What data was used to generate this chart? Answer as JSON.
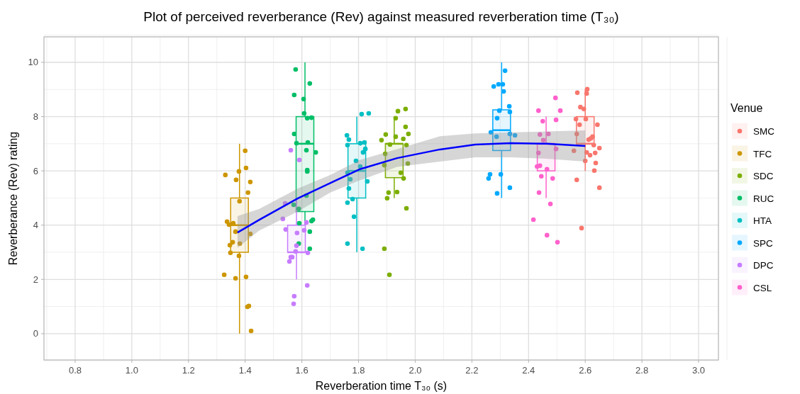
{
  "chart_data": {
    "type": "box",
    "title": "Plot of perceived reverberance (Rev) against measured reverberation time (T₃₀)",
    "xlabel": "Reverberation time T₃₀ (s)",
    "ylabel": "Reverberance (Rev) rating",
    "legend_title": "Venue",
    "legend": "right",
    "grid": true,
    "marker": "circle",
    "xlim": [
      0.69,
      3.07
    ],
    "ylim": [
      -0.97,
      10.94
    ],
    "xticks": [
      {
        "value": 0.8,
        "label": "0.8"
      },
      {
        "value": 1,
        "label": "1.0"
      },
      {
        "value": 1.2,
        "label": "1.2"
      },
      {
        "value": 1.4,
        "label": "1.4"
      },
      {
        "value": 1.6,
        "label": "1.6"
      },
      {
        "value": 1.8,
        "label": "1.8"
      },
      {
        "value": 2,
        "label": "2.0"
      },
      {
        "value": 2.2,
        "label": "2.2"
      },
      {
        "value": 2.4,
        "label": "2.4"
      },
      {
        "value": 2.6,
        "label": "2.6"
      },
      {
        "value": 2.8,
        "label": "2.8"
      },
      {
        "value": 3,
        "label": "3.0"
      }
    ],
    "yticks": [
      0,
      2,
      4,
      6,
      8,
      10
    ],
    "series": [
      {
        "color": "#f8766d",
        "x": [
          2.6
        ],
        "boxes": [
          {
            "low": 6,
            "q1": 7,
            "median": 7,
            "q3": 8,
            "high": 9
          }
        ]
      },
      {
        "color": "#cd9600",
        "x": [
          1.38
        ],
        "boxes": [
          {
            "low": 0,
            "q1": 3,
            "median": 4,
            "q3": 5,
            "high": 7
          }
        ]
      },
      {
        "color": "#7cae00",
        "x": [
          1.926
        ],
        "boxes": [
          {
            "low": 5,
            "q1": 5.75,
            "median": 7,
            "q3": 7,
            "high": 8
          }
        ]
      },
      {
        "color": "#00be67",
        "x": [
          1.611
        ],
        "boxes": [
          {
            "low": 4,
            "q1": 4.5,
            "median": 7,
            "q3": 8,
            "high": 10
          }
        ]
      },
      {
        "color": "#00bfc4",
        "x": [
          1.794
        ],
        "boxes": [
          {
            "low": 3,
            "q1": 5,
            "median": 6,
            "q3": 7,
            "high": 8
          }
        ]
      },
      {
        "color": "#00a9ff",
        "x": [
          2.305
        ],
        "boxes": [
          {
            "low": 5,
            "q1": 6.75,
            "median": 7.5,
            "q3": 8.25,
            "high": 10
          }
        ]
      },
      {
        "color": "#c77cff",
        "x": [
          1.581
        ],
        "boxes": [
          {
            "low": 2,
            "q1": 3,
            "median": 3,
            "q3": 4,
            "high": 5
          }
        ]
      },
      {
        "color": "#ff61cc",
        "x": [
          2.462
        ],
        "boxes": [
          {
            "low": 5,
            "q1": 6,
            "median": 7,
            "q3": 7,
            "high": 8
          }
        ]
      },
      {
        "name": "SMC",
        "type": "scatter",
        "color": "#f8766d",
        "x": [
          2.607,
          2.605,
          2.572,
          2.583,
          2.595,
          2.567,
          2.602,
          2.58,
          2.643,
          2.57,
          2.626,
          2.612,
          2.62,
          2.63,
          2.65,
          2.56,
          2.605,
          2.617,
          2.635,
          2.6,
          2.637,
          2.632,
          2.57,
          2.65,
          2.587
        ],
        "values": [
          9.01,
          8.85,
          8.88,
          8.35,
          8.28,
          7.91,
          7.91,
          7.7,
          7.7,
          7.36,
          7.26,
          7.15,
          7.2,
          6.95,
          6.84,
          6.74,
          6.68,
          6.58,
          6.66,
          6.37,
          6.29,
          6.01,
          5.67,
          5.38,
          3.89
        ]
      },
      {
        "name": "TFC",
        "type": "scatter",
        "color": "#cd9600",
        "x": [
          1.4,
          1.378,
          1.33,
          1.403,
          1.368,
          1.418,
          1.41,
          1.38,
          1.336,
          1.358,
          1.343,
          1.366,
          1.418,
          1.381,
          1.356,
          1.346,
          1.348,
          1.378,
          1.326,
          1.366,
          1.403,
          1.413,
          1.408,
          1.421
        ],
        "values": [
          6.74,
          5.98,
          5.85,
          6.11,
          5.67,
          5.59,
          5.2,
          4.88,
          4.13,
          4.07,
          4.02,
          3.76,
          3.68,
          3.32,
          3.37,
          3.26,
          2.98,
          2.87,
          2.17,
          2.04,
          2.09,
          1.02,
          0.99,
          0.1
        ]
      },
      {
        "name": "SDC",
        "type": "scatter",
        "color": "#7cae00",
        "x": [
          1.939,
          1.966,
          1.931,
          1.966,
          1.976,
          1.896,
          1.931,
          1.958,
          1.881,
          1.911,
          1.969,
          1.894,
          1.891,
          1.974,
          1.949,
          1.959,
          1.906,
          1.936,
          1.901,
          1.969,
          1.891,
          1.909
        ],
        "values": [
          8.2,
          8.28,
          7.94,
          7.62,
          7.36,
          7.34,
          7.26,
          7.18,
          7.13,
          6.97,
          6.95,
          6.63,
          6.21,
          6.27,
          5.93,
          5.72,
          5.2,
          5.22,
          4.99,
          4.62,
          3.13,
          2.17
        ]
      },
      {
        "name": "RUC",
        "type": "scatter",
        "color": "#00be67",
        "x": [
          1.578,
          1.628,
          1.573,
          1.606,
          1.608,
          1.619,
          1.634,
          1.573,
          1.581,
          1.621,
          1.616,
          1.649,
          1.619,
          1.619,
          1.616,
          1.571,
          1.589,
          1.634,
          1.639,
          1.591,
          1.628,
          1.589,
          1.628
        ],
        "values": [
          9.74,
          9.22,
          8.8,
          8.65,
          8.12,
          7.94,
          7.96,
          7.36,
          7.02,
          7.05,
          6.76,
          6.68,
          6.03,
          5.98,
          5.09,
          4.75,
          4.6,
          4.15,
          4.2,
          4.07,
          3.76,
          3.32,
          3.13
        ]
      },
      {
        "name": "HTA",
        "type": "scatter",
        "color": "#00bfc4",
        "x": [
          1.811,
          1.836,
          1.759,
          1.766,
          1.761,
          1.806,
          1.821,
          1.824,
          1.816,
          1.791,
          1.806,
          1.761,
          1.771,
          1.831,
          1.766,
          1.779,
          1.761,
          1.784,
          1.761,
          1.814
        ],
        "values": [
          8.09,
          8.12,
          7.31,
          7.15,
          6.95,
          7.02,
          7.05,
          6.81,
          6.68,
          6.37,
          6.16,
          5.93,
          5.69,
          5.61,
          5.35,
          4.96,
          4.83,
          4.31,
          3.32,
          3.13
        ]
      },
      {
        "name": "SPC",
        "type": "scatter",
        "color": "#00a9ff",
        "x": [
          2.317,
          2.277,
          2.294,
          2.309,
          2.312,
          2.332,
          2.334,
          2.297,
          2.289,
          2.267,
          2.287,
          2.334,
          2.352,
          2.264,
          2.259,
          2.302,
          2.334,
          2.289
        ],
        "values": [
          9.69,
          9.11,
          9.19,
          9.19,
          8.93,
          8.38,
          8.17,
          8.22,
          7.94,
          7.42,
          7.26,
          7.36,
          7.31,
          5.87,
          5.72,
          5.87,
          5.38,
          5.17
        ]
      },
      {
        "name": "DPC",
        "type": "scatter",
        "color": "#c77cff",
        "x": [
          1.561,
          1.591,
          1.541,
          1.533,
          1.543,
          1.583,
          1.608,
          1.616,
          1.581,
          1.578,
          1.621,
          1.561,
          1.556,
          1.566,
          1.619,
          1.573,
          1.571
        ],
        "values": [
          6.76,
          6.4,
          4.8,
          4.23,
          3.84,
          3.71,
          3.81,
          4.1,
          3.24,
          3.03,
          2.98,
          2.82,
          2.66,
          2.82,
          1.78,
          1.38,
          1.1
        ]
      },
      {
        "name": "CSL",
        "type": "scatter",
        "color": "#ff61cc",
        "x": [
          2.495,
          2.435,
          2.512,
          2.45,
          2.497,
          2.44,
          2.47,
          2.452,
          2.497,
          2.435,
          2.43,
          2.44,
          2.465,
          2.445,
          2.485,
          2.437,
          2.477,
          2.417,
          2.465,
          2.502
        ],
        "values": [
          8.69,
          8.22,
          8.22,
          7.83,
          7.88,
          7.34,
          7.36,
          7.13,
          6.81,
          6.66,
          6.16,
          6.19,
          6.06,
          5.8,
          5.72,
          5.2,
          4.78,
          4.2,
          3.63,
          3.37
        ]
      },
      {
        "type": "line",
        "marker": "none",
        "color": "#0000ff",
        "x": [
          1.373,
          1.45,
          1.586,
          1.7,
          1.804,
          1.936,
          2.087,
          2.212,
          2.337,
          2.462,
          2.6
        ],
        "values": [
          3.73,
          4.2,
          4.99,
          5.55,
          6.06,
          6.47,
          6.79,
          6.97,
          7.02,
          7.0,
          6.92
        ],
        "lower": [
          3.16,
          3.8,
          4.5,
          5.2,
          5.65,
          6.15,
          6.34,
          6.5,
          6.5,
          6.45,
          6.34
        ],
        "upper": [
          4.33,
          4.6,
          5.35,
          5.85,
          6.4,
          6.8,
          7.28,
          7.38,
          7.42,
          7.45,
          7.49
        ]
      }
    ]
  }
}
